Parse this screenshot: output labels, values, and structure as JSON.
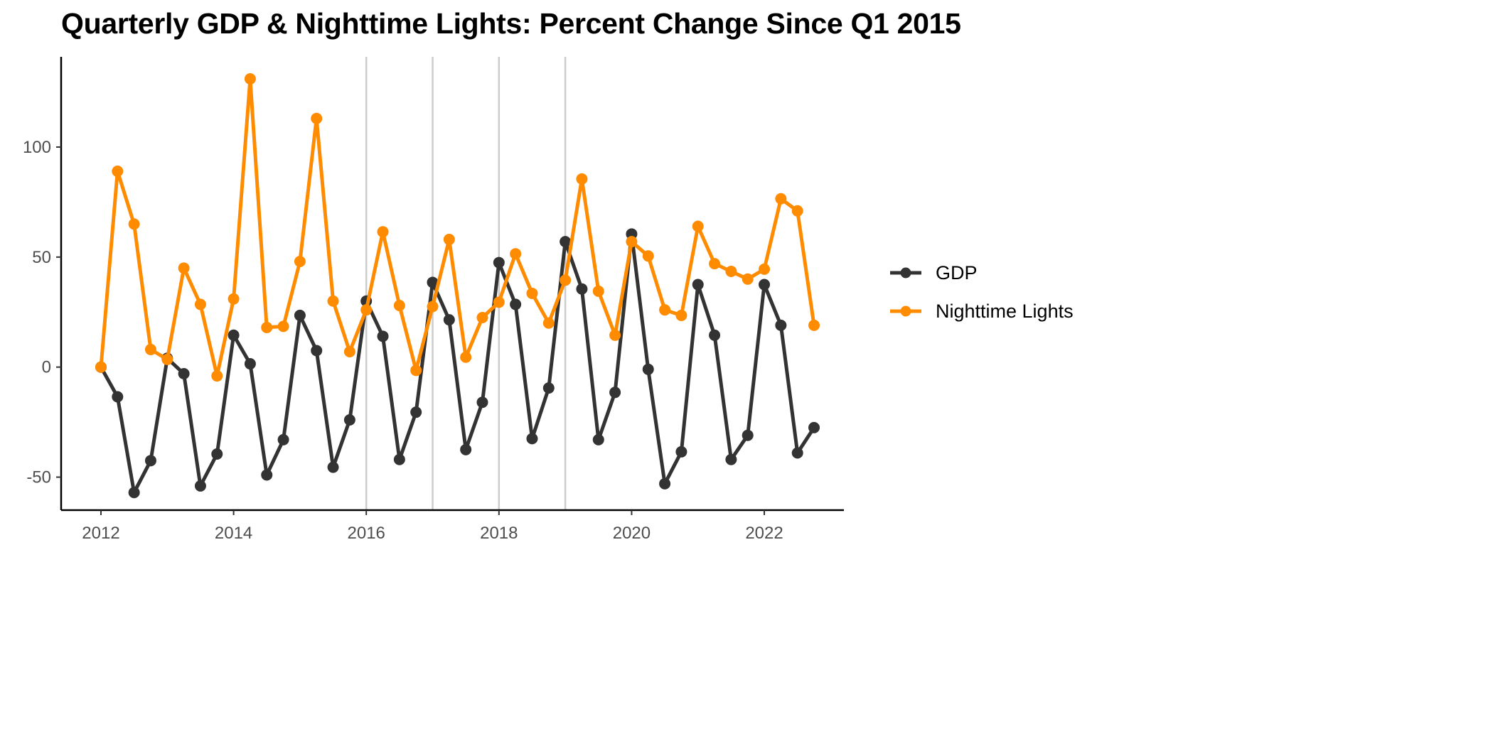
{
  "chart_data": {
    "type": "line",
    "title": "Quarterly GDP & Nighttime Lights: Percent Change Since Q1 2015",
    "xlabel": "",
    "ylabel": "",
    "x": [
      2012.0,
      2012.25,
      2012.5,
      2012.75,
      2013.0,
      2013.25,
      2013.5,
      2013.75,
      2014.0,
      2014.25,
      2014.5,
      2014.75,
      2015.0,
      2015.25,
      2015.5,
      2015.75,
      2016.0,
      2016.25,
      2016.5,
      2016.75,
      2017.0,
      2017.25,
      2017.5,
      2017.75,
      2018.0,
      2018.25,
      2018.5,
      2018.75,
      2019.0,
      2019.25,
      2019.5,
      2019.75,
      2020.0,
      2020.25,
      2020.5,
      2020.75,
      2021.0,
      2021.25,
      2021.5,
      2021.75,
      2022.0,
      2022.25,
      2022.5,
      2022.75
    ],
    "series": [
      {
        "name": "GDP",
        "color": "#333333",
        "values": [
          0,
          -13.5,
          -57,
          -42.5,
          4,
          -3,
          -54,
          -39.5,
          14.5,
          1.5,
          -49,
          -33,
          23.5,
          7.5,
          -45.5,
          -24,
          30,
          14,
          -42,
          -20.5,
          38.5,
          21.5,
          -37.5,
          -16,
          47.5,
          28.5,
          -32.5,
          -9.5,
          57,
          35.5,
          -33,
          -11.5,
          60.5,
          -1,
          -53,
          -38.5,
          37.5,
          14.5,
          -42,
          -31,
          37.5,
          19,
          -39,
          -27.5
        ]
      },
      {
        "name": "Nighttime Lights",
        "color": "#ff8c00",
        "values": [
          0,
          89,
          65,
          8,
          3.5,
          45,
          28.5,
          -4,
          31,
          131,
          18,
          18.5,
          48,
          113,
          30,
          7,
          26,
          61.5,
          28,
          -1.5,
          27.5,
          58,
          4.5,
          22.5,
          29.5,
          51.5,
          33.5,
          20,
          39.5,
          85.5,
          34.5,
          14.5,
          57,
          50.5,
          26,
          23.5,
          64,
          47,
          43.5,
          40,
          44.5,
          76.5,
          71,
          19
        ]
      }
    ],
    "xlim": [
      2011.4,
      2023.2
    ],
    "ylim": [
      -65,
      141
    ],
    "x_ticks": [
      2012,
      2014,
      2016,
      2018,
      2020,
      2022
    ],
    "x_tick_labels": [
      "2012",
      "2014",
      "2016",
      "2018",
      "2020",
      "2022"
    ],
    "y_ticks": [
      -50,
      0,
      50,
      100
    ],
    "y_tick_labels": [
      "-50",
      "0",
      "50",
      "100"
    ],
    "vlines": [
      2016,
      2017,
      2018,
      2019
    ],
    "grid": false,
    "legend_position": "right"
  },
  "legend": {
    "items": [
      {
        "label": "GDP",
        "color": "#333333"
      },
      {
        "label": "Nighttime Lights",
        "color": "#ff8c00"
      }
    ]
  }
}
